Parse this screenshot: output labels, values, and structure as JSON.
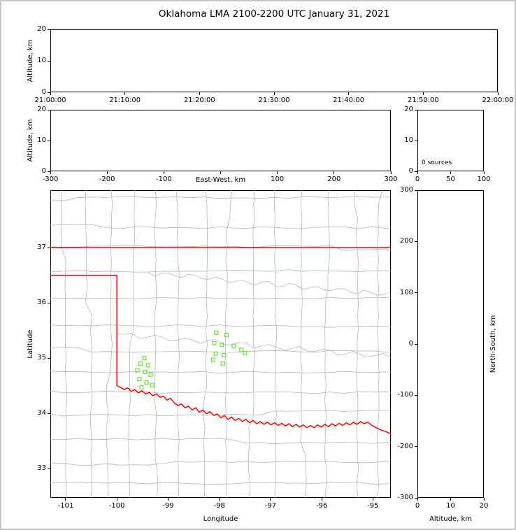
{
  "title": "Oklahoma LMA 2100-2200 UTC January 31, 2021",
  "colors": {
    "state_border": "#ff0000",
    "county_line": "#b5b5b5",
    "river_line": "#b5b5b5",
    "source_stroke": "#6ee83e",
    "axis_line": "#000000",
    "figure_frame": "#c6c6c6",
    "background": "#ffffff"
  },
  "chart_data": [
    {
      "id": "time_height_panel",
      "type": "scatter",
      "xlabel": "",
      "ylabel": "Altitude, km",
      "xlim": [
        0,
        3600
      ],
      "xticks": [
        0,
        600,
        1200,
        1800,
        2400,
        3000,
        3600
      ],
      "xtick_labels": [
        "21:00:00",
        "21:10:00",
        "21:20:00",
        "21:30:00",
        "21:40:00",
        "21:50:00",
        "22:00:00"
      ],
      "ylim": [
        0,
        20
      ],
      "yticks": [
        0,
        10,
        20
      ],
      "ytick_labels": [
        "0",
        "10",
        "20"
      ],
      "grid": false,
      "points": []
    },
    {
      "id": "ew_altitude_panel",
      "type": "scatter",
      "xlabel": "East-West, km",
      "ylabel": "Altitude, km",
      "xlim": [
        -300,
        300
      ],
      "xticks": [
        -300,
        -200,
        -100,
        0,
        100,
        200,
        300
      ],
      "xtick_labels": [
        "-300",
        "-200",
        "-100",
        "",
        "100",
        "200",
        "300"
      ],
      "ylim": [
        0,
        20
      ],
      "yticks": [
        0,
        10,
        20
      ],
      "ytick_labels": [
        "0",
        "10",
        "20"
      ],
      "grid": false,
      "points": []
    },
    {
      "id": "altitude_histogram_panel",
      "type": "histogram",
      "xlabel": "",
      "ylabel": "",
      "annotation": "0 sources",
      "xlim": [
        0,
        100
      ],
      "xticks": [
        0,
        50,
        100
      ],
      "xtick_labels": [
        "0",
        "50",
        "100"
      ],
      "ylim": [
        0,
        20
      ],
      "yticks": [
        0,
        10,
        20
      ],
      "ytick_labels": [
        "0",
        "10",
        "20"
      ],
      "grid": false,
      "points": []
    },
    {
      "id": "plan_view_map",
      "type": "scatter",
      "xlabel": "Longitude",
      "ylabel": "Latitude",
      "xlim": [
        -101.3,
        -94.65
      ],
      "xticks": [
        -101,
        -100,
        -99,
        -98,
        -97,
        -96,
        -95
      ],
      "xtick_labels": [
        "-101",
        "-100",
        "-99",
        "-98",
        "-97",
        "-96",
        "-95"
      ],
      "ylim": [
        32.47,
        38.04
      ],
      "yticks": [
        33,
        34,
        35,
        36,
        37
      ],
      "ytick_labels": [
        "33",
        "34",
        "35",
        "36",
        "37"
      ],
      "grid": false,
      "marker": "square",
      "points": [
        [
          -98.06,
          35.46
        ],
        [
          -97.86,
          35.42
        ],
        [
          -98.1,
          35.27
        ],
        [
          -97.95,
          35.24
        ],
        [
          -97.72,
          35.22
        ],
        [
          -98.07,
          35.08
        ],
        [
          -97.91,
          35.05
        ],
        [
          -98.12,
          34.97
        ],
        [
          -97.93,
          34.9
        ],
        [
          -97.57,
          35.15
        ],
        [
          -97.5,
          35.09
        ],
        [
          -99.46,
          35.0
        ],
        [
          -99.54,
          34.9
        ],
        [
          -99.39,
          34.87
        ],
        [
          -99.6,
          34.78
        ],
        [
          -99.45,
          34.75
        ],
        [
          -99.34,
          34.7
        ],
        [
          -99.56,
          34.62
        ],
        [
          -99.42,
          34.56
        ],
        [
          -99.52,
          34.47
        ],
        [
          -99.31,
          34.51
        ]
      ]
    },
    {
      "id": "ns_altitude_panel",
      "type": "scatter",
      "xlabel": "Altitude, km",
      "ylabel": "North-South, km",
      "xlim": [
        0,
        20
      ],
      "xticks": [
        0,
        10,
        20
      ],
      "xtick_labels": [
        "0",
        "10",
        "20"
      ],
      "ylim": [
        -300,
        300
      ],
      "yticks": [
        -300,
        -200,
        -100,
        0,
        100,
        200,
        300
      ],
      "ytick_labels": [
        "-300",
        "-200",
        "-100",
        "0",
        "100",
        "200",
        "300"
      ],
      "grid": false,
      "points": []
    }
  ]
}
